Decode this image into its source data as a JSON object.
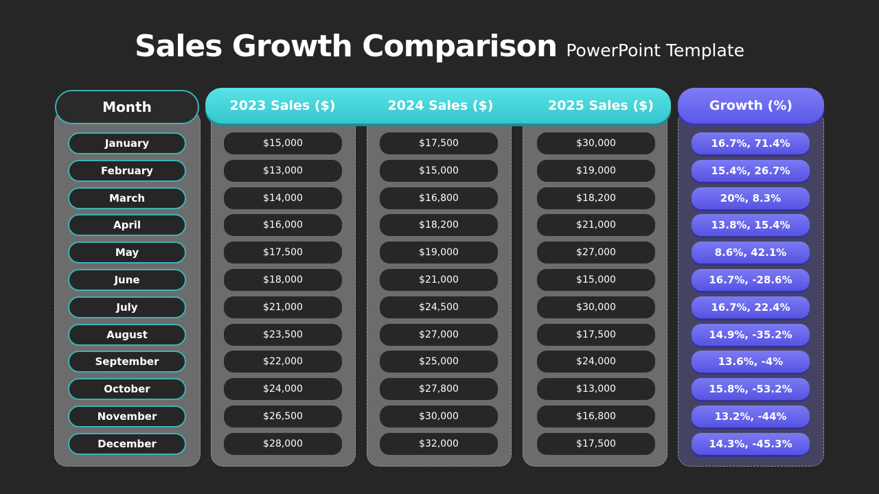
{
  "title": {
    "main": "Sales Growth Comparison",
    "sub": "PowerPoint Template"
  },
  "headers": {
    "month": "Month",
    "sales_2023": "2023 Sales ($)",
    "sales_2024": "2024 Sales ($)",
    "sales_2025": "2025 Sales ($)",
    "growth": "Growth (%)"
  },
  "colors": {
    "background": "#262626",
    "teal_accent": "#3bb4b8",
    "purple_accent": "#5b58e8",
    "panel_gray": "#6c6c6c"
  },
  "rows": [
    {
      "month": "January",
      "s2023": "$15,000",
      "s2024": "$17,500",
      "s2025": "$30,000",
      "growth": "16.7%, 71.4%"
    },
    {
      "month": "February",
      "s2023": "$13,000",
      "s2024": "$15,000",
      "s2025": "$19,000",
      "growth": "15.4%, 26.7%"
    },
    {
      "month": "March",
      "s2023": "$14,000",
      "s2024": "$16,800",
      "s2025": "$18,200",
      "growth": "20%, 8.3%"
    },
    {
      "month": "April",
      "s2023": "$16,000",
      "s2024": "$18,200",
      "s2025": "$21,000",
      "growth": "13.8%, 15.4%"
    },
    {
      "month": "May",
      "s2023": "$17,500",
      "s2024": "$19,000",
      "s2025": "$27,000",
      "growth": "8.6%, 42.1%"
    },
    {
      "month": "June",
      "s2023": "$18,000",
      "s2024": "$21,000",
      "s2025": "$15,000",
      "growth": "16.7%, -28.6%"
    },
    {
      "month": "July",
      "s2023": "$21,000",
      "s2024": "$24,500",
      "s2025": "$30,000",
      "growth": "16.7%, 22.4%"
    },
    {
      "month": "August",
      "s2023": "$23,500",
      "s2024": "$27,000",
      "s2025": "$17,500",
      "growth": "14.9%, -35.2%"
    },
    {
      "month": "September",
      "s2023": "$22,000",
      "s2024": "$25,000",
      "s2025": "$24,000",
      "growth": "13.6%, -4%"
    },
    {
      "month": "October",
      "s2023": "$24,000",
      "s2024": "$27,800",
      "s2025": "$13,000",
      "growth": "15.8%, -53.2%"
    },
    {
      "month": "November",
      "s2023": "$26,500",
      "s2024": "$30,000",
      "s2025": "$16,800",
      "growth": "13.2%, -44%"
    },
    {
      "month": "December",
      "s2023": "$28,000",
      "s2024": "$32,000",
      "s2025": "$17,500",
      "growth": "14.3%, -45.3%"
    }
  ]
}
